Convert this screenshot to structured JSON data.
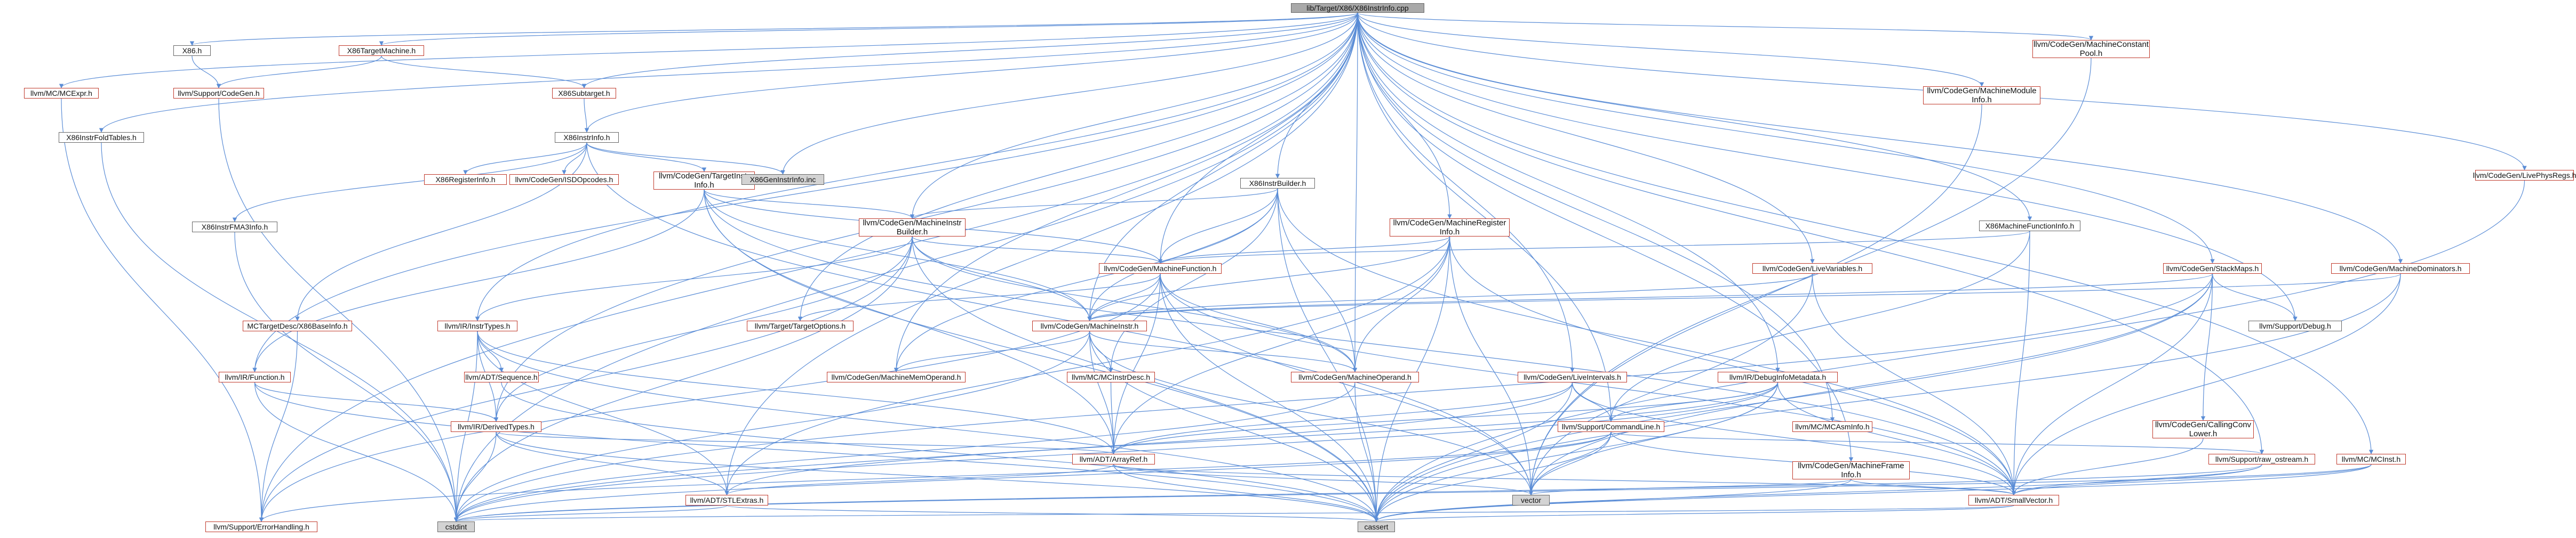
{
  "colors": {
    "edge": "#5b8dd6",
    "border_red": "#c0392b",
    "border_gray": "#666666",
    "root_fill": "#a9a9a9",
    "ext_fill": "#d3d3d3"
  },
  "nodes": [
    {
      "id": "root",
      "label": "lib/Target/X86/X86InstrInfo.cpp",
      "style": "root"
    },
    {
      "id": "x86h",
      "label": "X86.h",
      "style": "gray"
    },
    {
      "id": "x86tm",
      "label": "X86TargetMachine.h",
      "style": "red"
    },
    {
      "id": "mcexpr",
      "label": "llvm/MC/MCExpr.h",
      "style": "red"
    },
    {
      "id": "codegen",
      "label": "llvm/Support/CodeGen.h",
      "style": "red"
    },
    {
      "id": "x86sub",
      "label": "X86Subtarget.h",
      "style": "red"
    },
    {
      "id": "x86foldt",
      "label": "X86InstrFoldTables.h",
      "style": "gray"
    },
    {
      "id": "x86instrinfoh",
      "label": "X86InstrInfo.h",
      "style": "gray"
    },
    {
      "id": "x86reginfo",
      "label": "X86RegisterInfo.h",
      "style": "red"
    },
    {
      "id": "isdopc",
      "label": "llvm/CodeGen/ISDOpcodes.h",
      "style": "red"
    },
    {
      "id": "tii",
      "label": "llvm/CodeGen/TargetInstr\nInfo.h",
      "style": "red"
    },
    {
      "id": "x86geninc",
      "label": "X86GenInstrInfo.inc",
      "style": "filled"
    },
    {
      "id": "fma3",
      "label": "X86InstrFMA3Info.h",
      "style": "gray"
    },
    {
      "id": "mibh",
      "label": "llvm/CodeGen/MachineInstr\nBuilder.h",
      "style": "red"
    },
    {
      "id": "mcbase",
      "label": "MCTargetDesc/X86BaseInfo.h",
      "style": "red"
    },
    {
      "id": "instrtypes",
      "label": "llvm/IR/InstrTypes.h",
      "style": "red"
    },
    {
      "id": "irfunc",
      "label": "llvm/IR/Function.h",
      "style": "red"
    },
    {
      "id": "adtseq",
      "label": "llvm/ADT/Sequence.h",
      "style": "red"
    },
    {
      "id": "derived",
      "label": "llvm/IR/DerivedTypes.h",
      "style": "red"
    },
    {
      "id": "errh",
      "label": "llvm/Support/ErrorHandling.h",
      "style": "red"
    },
    {
      "id": "cstdint",
      "label": "cstdint",
      "style": "filled"
    },
    {
      "id": "cassert",
      "label": "cassert",
      "style": "filled"
    },
    {
      "id": "vector",
      "label": "vector",
      "style": "filled"
    },
    {
      "id": "mfh",
      "label": "llvm/CodeGen/MachineFunction.h",
      "style": "red"
    },
    {
      "id": "tto",
      "label": "llvm/Target/TargetOptions.h",
      "style": "red"
    },
    {
      "id": "mih",
      "label": "llvm/CodeGen/MachineInstr.h",
      "style": "red"
    },
    {
      "id": "mmo",
      "label": "llvm/CodeGen/MachineMemOperand.h",
      "style": "red"
    },
    {
      "id": "mcid",
      "label": "llvm/MC/MCInstrDesc.h",
      "style": "red"
    },
    {
      "id": "mo",
      "label": "llvm/CodeGen/MachineOperand.h",
      "style": "red"
    },
    {
      "id": "arrayref",
      "label": "llvm/ADT/ArrayRef.h",
      "style": "red"
    },
    {
      "id": "stlextras",
      "label": "llvm/ADT/STLExtras.h",
      "style": "red"
    },
    {
      "id": "smallvec",
      "label": "llvm/ADT/SmallVector.h",
      "style": "red"
    },
    {
      "id": "x86ib",
      "label": "X86InstrBuilder.h",
      "style": "gray"
    },
    {
      "id": "mri",
      "label": "llvm/CodeGen/MachineRegister\nInfo.h",
      "style": "red"
    },
    {
      "id": "lvars",
      "label": "llvm/CodeGen/LiveVariables.h",
      "style": "red"
    },
    {
      "id": "livints",
      "label": "llvm/CodeGen/LiveIntervals.h",
      "style": "red"
    },
    {
      "id": "dbginfo",
      "label": "llvm/IR/DebugInfoMetadata.h",
      "style": "red"
    },
    {
      "id": "cmdline",
      "label": "llvm/Support/CommandLine.h",
      "style": "red"
    },
    {
      "id": "mcasminfo",
      "label": "llvm/MC/MCAsmInfo.h",
      "style": "red"
    },
    {
      "id": "mframe",
      "label": "llvm/CodeGen/MachineFrame\nInfo.h",
      "style": "red"
    },
    {
      "id": "mmodinfo",
      "label": "llvm/CodeGen/MachineModule\nInfo.h",
      "style": "red"
    },
    {
      "id": "x86mfi",
      "label": "X86MachineFunctionInfo.h",
      "style": "gray"
    },
    {
      "id": "mcpool",
      "label": "llvm/CodeGen/MachineConstant\nPool.h",
      "style": "red"
    },
    {
      "id": "stackmaps",
      "label": "llvm/CodeGen/StackMaps.h",
      "style": "red"
    },
    {
      "id": "debug",
      "label": "llvm/Support/Debug.h",
      "style": "gray"
    },
    {
      "id": "ccl",
      "label": "llvm/CodeGen/CallingConv\nLower.h",
      "style": "red"
    },
    {
      "id": "mdom",
      "label": "llvm/CodeGen/MachineDominators.h",
      "style": "red"
    },
    {
      "id": "rawos",
      "label": "llvm/Support/raw_ostream.h",
      "style": "red"
    },
    {
      "id": "mcinst",
      "label": "llvm/MC/MCInst.h",
      "style": "red"
    },
    {
      "id": "lpr",
      "label": "llvm/CodeGen/LivePhysRegs.h",
      "style": "red"
    }
  ]
}
